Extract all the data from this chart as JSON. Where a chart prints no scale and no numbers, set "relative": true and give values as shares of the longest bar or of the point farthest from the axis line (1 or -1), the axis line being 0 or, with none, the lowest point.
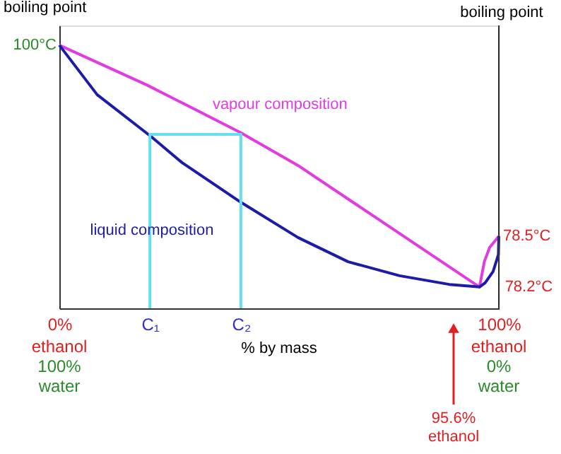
{
  "chart_data": {
    "type": "line",
    "relative": true,
    "ylabel": "boiling point",
    "y2label": "boiling point",
    "xlabel": "% by mass",
    "xlim": [
      0,
      100
    ],
    "xticks": [
      {
        "value": 0,
        "label": "0%"
      },
      {
        "value": 20.6,
        "label": "C₁"
      },
      {
        "value": 41.3,
        "label": "C₂"
      },
      {
        "value": 100,
        "label": "100%"
      }
    ],
    "series": [
      {
        "name": "vapour composition",
        "color": "#e23be2",
        "x": [
          0,
          19.9,
          41.3,
          54.3,
          95.6,
          96.7,
          97.9,
          100
        ],
        "values": [
          1,
          0.849,
          0.667,
          0.543,
          0.081,
          0.177,
          0.231,
          0.274
        ]
      },
      {
        "name": "liquid composition",
        "color": "#1c1ca8",
        "x": [
          0,
          8.6,
          21.0,
          27.9,
          41.3,
          54.3,
          65.7,
          77.4,
          88.7,
          95.6,
          96.9,
          98.7,
          99.9,
          100
        ],
        "values": [
          1,
          0.812,
          0.651,
          0.554,
          0.403,
          0.269,
          0.177,
          0.124,
          0.091,
          0.081,
          0.097,
          0.14,
          0.204,
          0.274
        ]
      },
      {
        "color": "#66e0f0",
        "x": [
          20.6,
          20.6,
          41.3,
          41.3
        ],
        "values": [
          0,
          0.661,
          0.661,
          0
        ]
      }
    ],
    "annotations": [
      {
        "text": "100°C",
        "x": 0,
        "y": 1
      },
      {
        "text": "78.5°C",
        "x": 100,
        "y": 0.274
      },
      {
        "text": "78.2°C",
        "x": 95.6,
        "y": 0.081
      },
      "ethanol\n100%\nwater",
      "ethanol\n0%\nwater",
      "95.6%\nethanol"
    ],
    "marker": "none",
    "grid": false
  }
}
